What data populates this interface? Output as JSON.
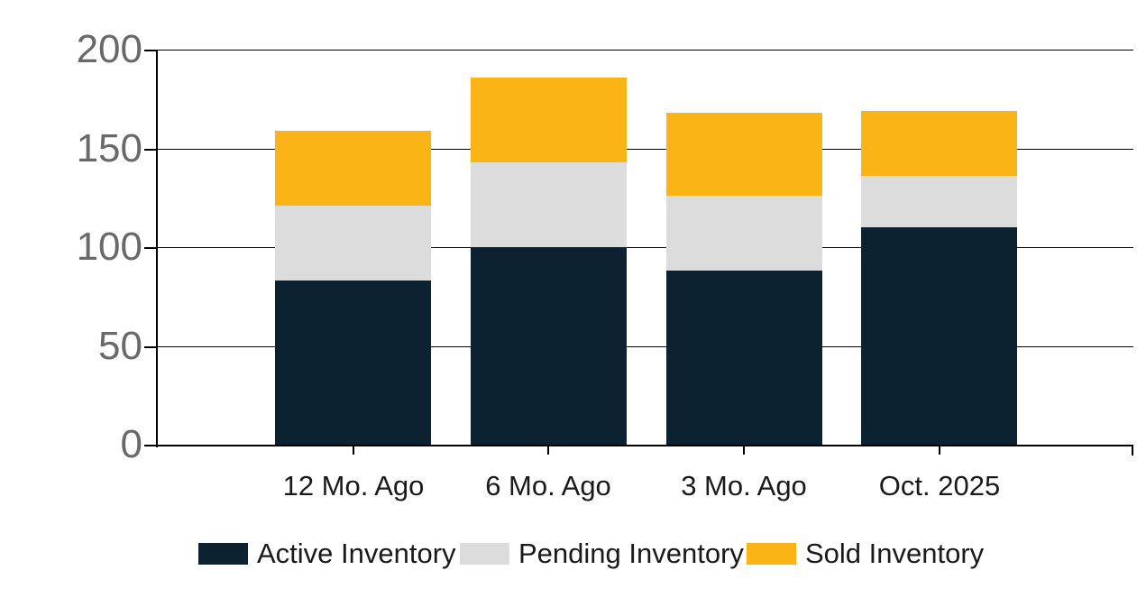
{
  "chart_data": {
    "type": "bar",
    "stacked": true,
    "title": "",
    "xlabel": "",
    "ylabel": "",
    "categories": [
      "12 Mo. Ago",
      "6 Mo. Ago",
      "3 Mo. Ago",
      "Oct. 2025"
    ],
    "series": [
      {
        "name": "Active Inventory",
        "color": "#0D2230",
        "values": [
          83,
          100,
          88,
          110
        ]
      },
      {
        "name": "Pending Inventory",
        "color": "#DCDCDC",
        "values": [
          38,
          43,
          38,
          26
        ]
      },
      {
        "name": "Sold Inventory",
        "color": "#FBB416",
        "values": [
          38,
          43,
          42,
          33
        ]
      }
    ],
    "y_ticks": [
      0,
      50,
      100,
      150,
      200
    ],
    "ylim": [
      0,
      200
    ],
    "grid": true,
    "legend_position": "bottom",
    "colors": {
      "grid_line": "#000000",
      "axis_line": "#000000",
      "y_tick_label": "#696969",
      "x_tick_label": "#1A1A1A",
      "legend_text": "#1A1A1A",
      "background": "#FFFFFF"
    }
  }
}
